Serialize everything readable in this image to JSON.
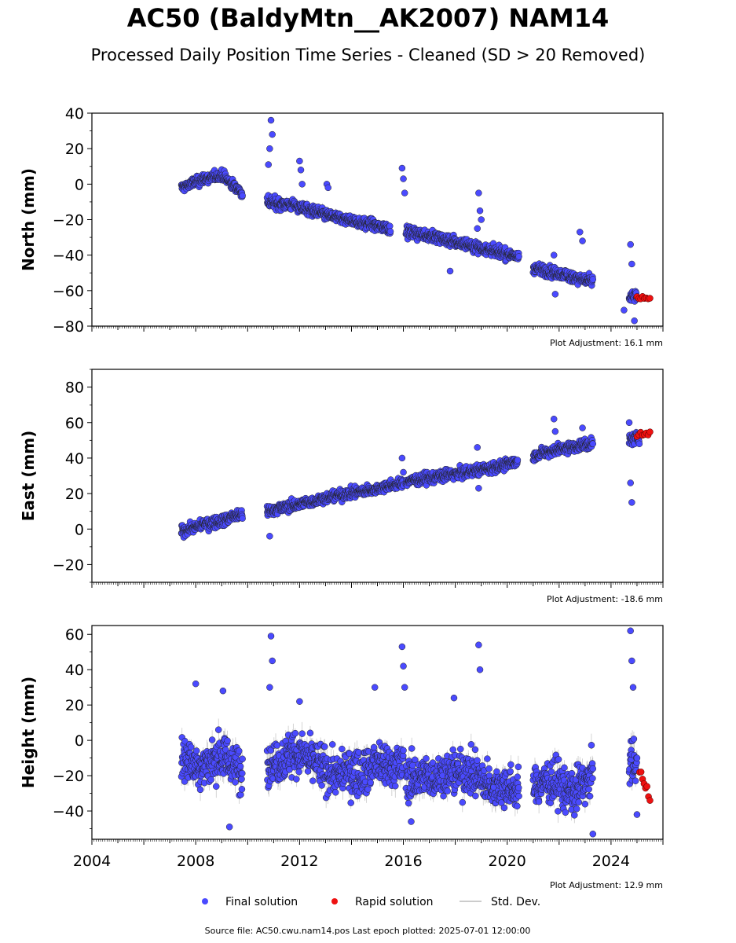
{
  "title": "AC50 (BaldyMtn__AK2007) NAM14",
  "subtitle": "Processed Daily Position Time Series - Cleaned (SD > 20 Removed)",
  "legend": {
    "final": "Final solution",
    "rapid": "Rapid solution",
    "std": "Std. Dev."
  },
  "footer": "Source file: AC50.cwu.nam14.pos  Last epoch plotted: 2025-07-01 12:00:00",
  "colors": {
    "final": "#4a4aff",
    "rapid": "#ee1111",
    "std": "#999999"
  },
  "chart_data": [
    {
      "type": "scatter",
      "name": "north",
      "ylabel": "North (mm)",
      "adjustment": "Plot Adjustment: 16.1 mm",
      "xlim": [
        2004,
        2026
      ],
      "ylim": [
        -80,
        40
      ],
      "yticks": [
        40,
        20,
        0,
        -20,
        -40,
        -60,
        -80
      ],
      "ytick_labels": [
        "40",
        "20",
        "0",
        "−20",
        "−40",
        "−60",
        "−80"
      ],
      "final_segments": [
        {
          "x": [
            2007.45,
            2008.3,
            2009.0,
            2009.8
          ],
          "y": [
            -2,
            3,
            5,
            -5
          ]
        },
        {
          "x": [
            2010.75,
            2011.8,
            2012.5,
            2013.5,
            2014.5,
            2015.5
          ],
          "y": [
            -10,
            -12,
            -15,
            -19,
            -22,
            -25
          ]
        },
        {
          "x": [
            2016.1,
            2017.0,
            2017.8,
            2018.5,
            2019.3,
            2020.45
          ],
          "y": [
            -27,
            -29,
            -32,
            -34,
            -37,
            -41
          ]
        },
        {
          "x": [
            2021.0,
            2021.8,
            2022.5,
            2023.3
          ],
          "y": [
            -47,
            -50,
            -52,
            -55
          ]
        },
        {
          "x": [
            2024.7,
            2025.0
          ],
          "y": [
            -64,
            -63
          ]
        }
      ],
      "final_excursions": [
        {
          "x": 2010.9,
          "y": 36
        },
        {
          "x": 2010.95,
          "y": 28
        },
        {
          "x": 2010.85,
          "y": 20
        },
        {
          "x": 2010.8,
          "y": 11
        },
        {
          "x": 2012.0,
          "y": 13
        },
        {
          "x": 2012.05,
          "y": 8
        },
        {
          "x": 2012.1,
          "y": 0
        },
        {
          "x": 2013.05,
          "y": 0
        },
        {
          "x": 2013.1,
          "y": -2
        },
        {
          "x": 2015.95,
          "y": 9
        },
        {
          "x": 2016.0,
          "y": 3
        },
        {
          "x": 2016.05,
          "y": -5
        },
        {
          "x": 2018.9,
          "y": -5
        },
        {
          "x": 2018.95,
          "y": -15
        },
        {
          "x": 2018.85,
          "y": -25
        },
        {
          "x": 2019.0,
          "y": -20
        },
        {
          "x": 2017.8,
          "y": -49
        },
        {
          "x": 2021.8,
          "y": -40
        },
        {
          "x": 2021.85,
          "y": -62
        },
        {
          "x": 2022.8,
          "y": -27
        },
        {
          "x": 2022.9,
          "y": -32
        },
        {
          "x": 2024.75,
          "y": -34
        },
        {
          "x": 2024.8,
          "y": -45
        },
        {
          "x": 2024.9,
          "y": -77
        },
        {
          "x": 2024.5,
          "y": -71
        }
      ],
      "rapid": {
        "x": [
          2025.0,
          2025.5
        ],
        "y": [
          -64,
          -65
        ]
      }
    },
    {
      "type": "scatter",
      "name": "east",
      "ylabel": "East (mm)",
      "adjustment": "Plot Adjustment: -18.6 mm",
      "xlim": [
        2004,
        2026
      ],
      "ylim": [
        -30,
        90
      ],
      "yticks": [
        80,
        60,
        40,
        20,
        0,
        -20
      ],
      "ytick_labels": [
        "80",
        "60",
        "40",
        "20",
        "0",
        "−20"
      ],
      "final_segments": [
        {
          "x": [
            2007.45,
            2008.5,
            2009.3,
            2009.8
          ],
          "y": [
            -1,
            3,
            6,
            8
          ]
        },
        {
          "x": [
            2010.75,
            2012.0,
            2013.5,
            2015.0,
            2016.0
          ],
          "y": [
            10,
            14,
            19,
            23,
            26
          ]
        },
        {
          "x": [
            2016.1,
            2017.5,
            2018.9,
            2020.4
          ],
          "y": [
            27,
            30,
            33,
            38
          ]
        },
        {
          "x": [
            2021.0,
            2022.0,
            2023.3
          ],
          "y": [
            41,
            45,
            48
          ]
        },
        {
          "x": [
            2024.7,
            2025.1
          ],
          "y": [
            50,
            52
          ]
        }
      ],
      "final_excursions": [
        {
          "x": 2010.85,
          "y": -4
        },
        {
          "x": 2015.95,
          "y": 40
        },
        {
          "x": 2016.0,
          "y": 32
        },
        {
          "x": 2018.85,
          "y": 46
        },
        {
          "x": 2018.9,
          "y": 23
        },
        {
          "x": 2021.8,
          "y": 62
        },
        {
          "x": 2021.85,
          "y": 55
        },
        {
          "x": 2022.9,
          "y": 57
        },
        {
          "x": 2024.8,
          "y": 15
        },
        {
          "x": 2024.75,
          "y": 26
        },
        {
          "x": 2024.7,
          "y": 60
        }
      ],
      "rapid": {
        "x": [
          2025.0,
          2025.5
        ],
        "y": [
          53,
          54
        ]
      }
    },
    {
      "type": "scatter",
      "name": "height",
      "ylabel": "Height (mm)",
      "adjustment": "Plot Adjustment: 12.9 mm",
      "xlim": [
        2004,
        2026
      ],
      "ylim": [
        -56,
        65
      ],
      "yticks": [
        60,
        40,
        20,
        0,
        -20,
        -40
      ],
      "ytick_labels": [
        "60",
        "40",
        "20",
        "0",
        "−20",
        "−40"
      ],
      "xticks": [
        2004,
        2008,
        2012,
        2016,
        2020,
        2024
      ],
      "xtick_labels": [
        "2004",
        "2008",
        "2012",
        "2016",
        "2020",
        "2024"
      ],
      "final_segments": [
        {
          "x": [
            2007.45,
            2008.3,
            2009.0,
            2009.8
          ],
          "y": [
            -10,
            -15,
            -8,
            -18
          ]
        },
        {
          "x": [
            2010.75,
            2012.0,
            2013.5,
            2015.0,
            2016.0
          ],
          "y": [
            -12,
            -8,
            -20,
            -15,
            -14
          ]
        },
        {
          "x": [
            2016.1,
            2017.3,
            2018.5,
            2019.5,
            2020.45
          ],
          "y": [
            -22,
            -20,
            -18,
            -25,
            -28
          ]
        },
        {
          "x": [
            2021.0,
            2021.8,
            2022.5,
            2023.3
          ],
          "y": [
            -25,
            -22,
            -30,
            -20
          ]
        },
        {
          "x": [
            2024.7,
            2025.0
          ],
          "y": [
            -10,
            -15
          ]
        }
      ],
      "final_excursions": [
        {
          "x": 2010.9,
          "y": 59
        },
        {
          "x": 2010.95,
          "y": 45
        },
        {
          "x": 2010.85,
          "y": 30
        },
        {
          "x": 2008.0,
          "y": 32
        },
        {
          "x": 2009.05,
          "y": 28
        },
        {
          "x": 2012.0,
          "y": 22
        },
        {
          "x": 2014.9,
          "y": 30
        },
        {
          "x": 2015.95,
          "y": 53
        },
        {
          "x": 2016.0,
          "y": 42
        },
        {
          "x": 2016.05,
          "y": 30
        },
        {
          "x": 2017.95,
          "y": 24
        },
        {
          "x": 2018.9,
          "y": 54
        },
        {
          "x": 2018.95,
          "y": 40
        },
        {
          "x": 2016.3,
          "y": -46
        },
        {
          "x": 2009.3,
          "y": -49
        },
        {
          "x": 2023.3,
          "y": -53
        },
        {
          "x": 2024.75,
          "y": 62
        },
        {
          "x": 2024.8,
          "y": 45
        },
        {
          "x": 2024.85,
          "y": 30
        },
        {
          "x": 2025.0,
          "y": -42
        }
      ],
      "rapid": {
        "x": [
          2025.1,
          2025.5
        ],
        "y": [
          -18,
          -33
        ]
      }
    }
  ]
}
